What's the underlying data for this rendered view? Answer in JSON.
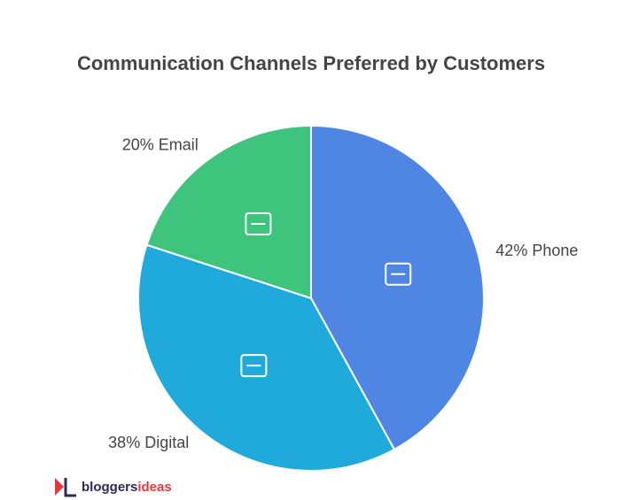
{
  "chart_data": {
    "type": "pie",
    "title": "Communication Channels Preferred by Customers",
    "categories": [
      "Phone",
      "Digital",
      "Email"
    ],
    "values": [
      42,
      38,
      20
    ],
    "value_labels": [
      "42% Phone",
      "38% Digital",
      "20% Email"
    ],
    "colors": [
      "#4f86e4",
      "#1faadb",
      "#3fc47e"
    ]
  },
  "brand": {
    "name": "bloggers",
    "accent": "ideas"
  }
}
